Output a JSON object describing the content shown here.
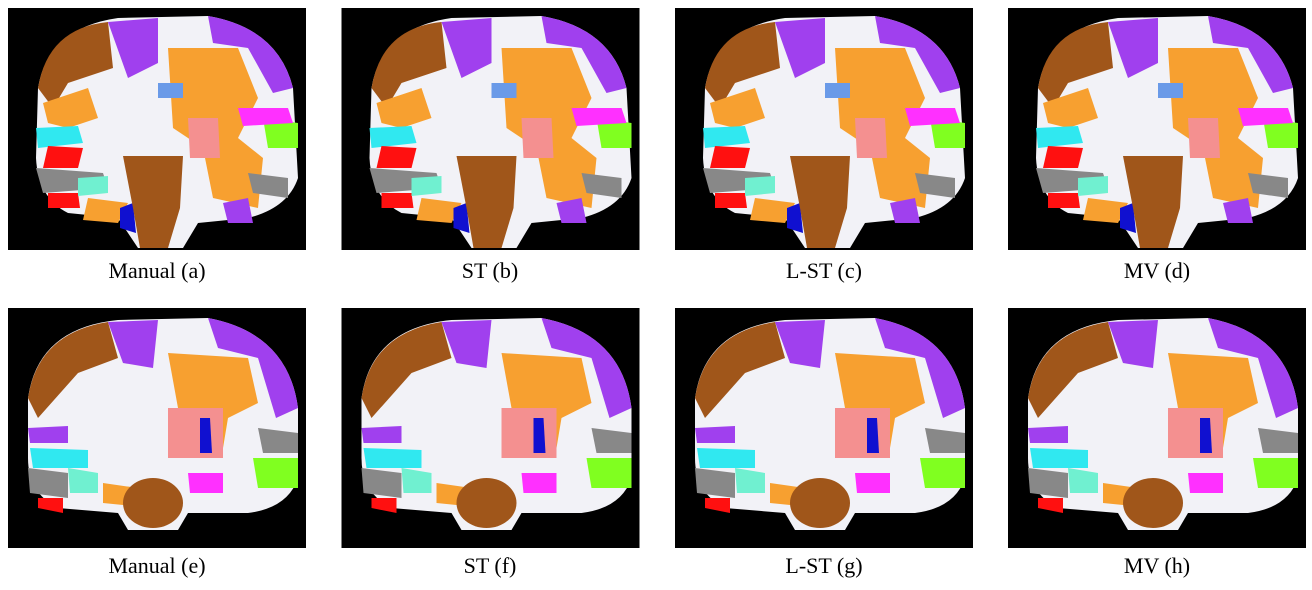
{
  "panels": [
    "Manual (a)",
    "ST (b)",
    "L-ST (c)",
    "MV (d)",
    "Manual (e)",
    "ST (f)",
    "L-ST (g)",
    "MV (h)"
  ]
}
